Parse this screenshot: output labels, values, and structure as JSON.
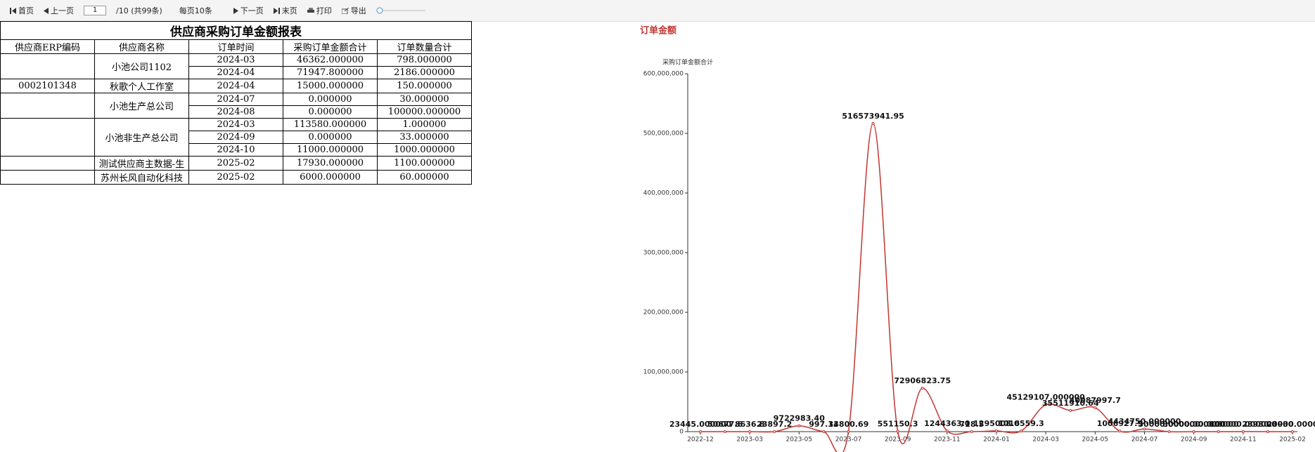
{
  "toolbar": {
    "first": "首页",
    "prev": "上一页",
    "page": "1",
    "page_info": "/10 (共99条)",
    "page_size": "每页10条",
    "next": "下一页",
    "last": "末页",
    "print": "打印",
    "export": "导出"
  },
  "table": {
    "title": "供应商采购订单金额报表",
    "headers": [
      "供应商ERP编码",
      "供应商名称",
      "订单时间",
      "采购订单金额合计",
      "订单数量合计"
    ],
    "groups": [
      {
        "erp": null,
        "supplier": "小池公司1102",
        "rows": [
          [
            "2024-03",
            "46362.000000",
            "798.000000"
          ],
          [
            "2024-04",
            "71947.800000",
            "2186.000000"
          ]
        ]
      },
      {
        "erp": "0002101348",
        "supplier": "秋歌个人工作室",
        "rows": [
          [
            "2024-04",
            "15000.000000",
            "150.000000"
          ]
        ]
      },
      {
        "erp": null,
        "supplier": "小池生产总公司",
        "rows": [
          [
            "2024-07",
            "0.000000",
            "30.000000"
          ],
          [
            "2024-08",
            "0.000000",
            "100000.000000"
          ]
        ]
      },
      {
        "erp": null,
        "supplier": "小池非生产总公司",
        "rows": [
          [
            "2024-03",
            "113580.000000",
            "1.000000"
          ],
          [
            "2024-09",
            "0.000000",
            "33.000000"
          ],
          [
            "2024-10",
            "11000.000000",
            "1000.000000"
          ]
        ]
      },
      {
        "erp": null,
        "supplier": "测试供应商主数据-生",
        "rows": [
          [
            "2025-02",
            "17930.000000",
            "1100.000000"
          ]
        ]
      },
      {
        "erp": null,
        "supplier": "苏州长风自动化科技",
        "rows": [
          [
            "2025-02",
            "6000.000000",
            "60.000000"
          ]
        ]
      }
    ]
  },
  "chart_data": {
    "type": "line",
    "title": "订单金额",
    "y_label": "采购订单金额合计",
    "color": "#c23531",
    "categories": [
      "2022-12",
      null,
      "2023-03",
      null,
      "2023-05",
      null,
      "2023-07",
      null,
      "2023-09",
      null,
      "2023-11",
      null,
      "2024-01",
      null,
      "2024-03",
      null,
      "2024-05",
      null,
      "2024-07",
      null,
      "2024-09",
      null,
      "2024-11",
      null,
      "2025-02"
    ],
    "values": [
      23445,
      50677.6,
      8636.8,
      23897.2,
      9722983.4,
      997.13,
      34800.69,
      516573941.95,
      551150.3,
      72906823.75,
      1244363.0,
      718.5,
      1295008.0,
      1016559.3,
      45129107,
      35511910.64,
      40087997.7,
      1006927.9,
      4434750,
      50000,
      30000,
      0,
      100000,
      23930,
      23930
    ],
    "value_labels": [
      "23445.000000",
      "50677.6",
      "8636.8",
      "23897.2",
      "9722983.40",
      "997.13",
      "34800.69",
      "516573941.95",
      "551150.3",
      "72906823.75",
      "1244363.0",
      "718.5",
      "1295008.0",
      "1016559.3",
      "45129107.000000",
      "35511910.64",
      "40087997.7",
      "1006927.9",
      "4434750.000000",
      "50000.000000",
      "30000.000000",
      "0.000000",
      "100000.000000",
      "23930.0000",
      "23930.0000"
    ],
    "ylim": [
      0,
      600000000
    ],
    "yticks": [
      0,
      {
        "value": 100000000,
        "label": "100,000,000"
      },
      {
        "value": 200000000,
        "label": "200,000,000"
      },
      {
        "value": 300000000,
        "label": "300,000,000"
      },
      {
        "value": 400000000,
        "label": "400,000,000"
      },
      {
        "value": 500000000,
        "label": "500,000,000"
      },
      {
        "value": 600000000,
        "label": "600,000,000"
      }
    ]
  }
}
